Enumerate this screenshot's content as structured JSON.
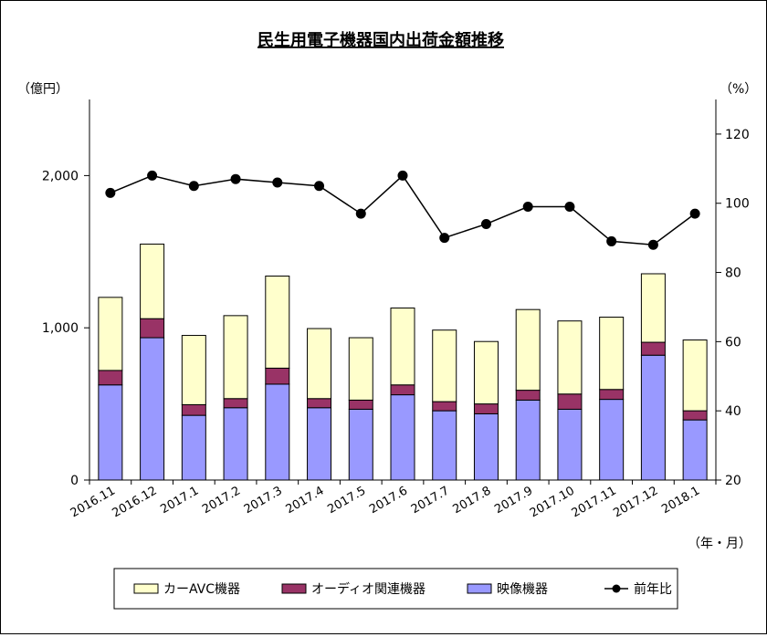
{
  "chart_data": {
    "type": "bar",
    "title": "民生用電子機器国内出荷金額推移",
    "left_unit": "（億円）",
    "right_unit": "（%）",
    "x_unit": "（年・月）",
    "categories": [
      "2016.11",
      "2016.12",
      "2017.1",
      "2017.2",
      "2017.3",
      "2017.4",
      "2017.5",
      "2017.6",
      "2017.7",
      "2017.8",
      "2017.9",
      "2017.10",
      "2017.11",
      "2017.12",
      "2018.1"
    ],
    "left_axis": {
      "min": 0,
      "max": 2500,
      "ticks": [
        0,
        1000,
        2000
      ],
      "tick_labels": [
        "0",
        "1,000",
        "2,000"
      ]
    },
    "right_axis": {
      "min": 20,
      "max": 130,
      "ticks": [
        20,
        40,
        60,
        80,
        100,
        120
      ],
      "tick_labels": [
        "20",
        "40",
        "60",
        "80",
        "100",
        "120"
      ]
    },
    "stacked_series": [
      {
        "name": "映像機器",
        "color": "#9999FF",
        "values": [
          625,
          935,
          425,
          475,
          630,
          475,
          465,
          560,
          455,
          435,
          525,
          465,
          530,
          820,
          395
        ]
      },
      {
        "name": "オーディオ関連機器",
        "color": "#993366",
        "values": [
          95,
          125,
          70,
          60,
          105,
          60,
          60,
          65,
          60,
          65,
          65,
          100,
          65,
          85,
          60
        ]
      },
      {
        "name": "カーAVC機器",
        "color": "#FFFFCC",
        "values": [
          480,
          490,
          455,
          545,
          605,
          460,
          410,
          505,
          470,
          410,
          530,
          480,
          475,
          450,
          465
        ]
      }
    ],
    "line_series": {
      "name": "前年比",
      "color": "#000000",
      "axis": "right",
      "values": [
        103,
        108,
        105,
        107,
        106,
        105,
        97,
        108,
        90,
        94,
        99,
        99,
        89,
        88,
        97
      ]
    },
    "legend": {
      "placement": "bottom",
      "items": [
        {
          "label": "カーAVC機器",
          "kind": "bar",
          "color": "#FFFFCC"
        },
        {
          "label": "オーディオ関連機器",
          "kind": "bar",
          "color": "#993366"
        },
        {
          "label": "映像機器",
          "kind": "bar",
          "color": "#9999FF"
        },
        {
          "label": "前年比",
          "kind": "line",
          "color": "#000000"
        }
      ]
    },
    "grid": false
  }
}
